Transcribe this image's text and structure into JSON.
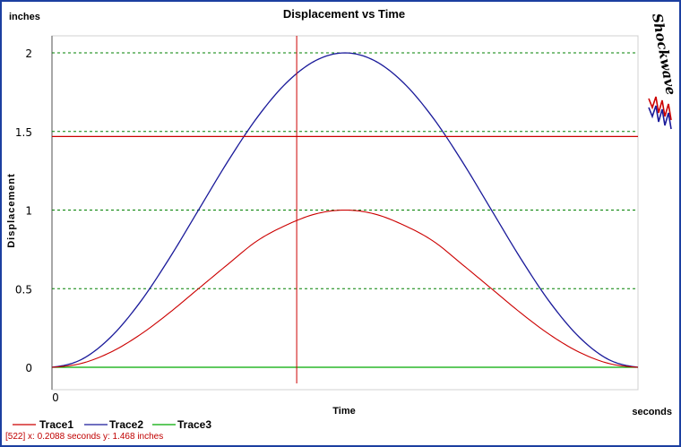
{
  "chart_data": {
    "type": "line",
    "title": "Displacement vs Time",
    "xlabel": "Time",
    "ylabel": "Displacement",
    "x_unit": "seconds",
    "y_unit": "inches",
    "x_tick_labels": [
      "0"
    ],
    "y_ticks": [
      0,
      0.5,
      1,
      1.5,
      2
    ],
    "y_tick_labels": [
      "0",
      "0.5",
      "1",
      "1.5",
      "2"
    ],
    "xlim": [
      0,
      0.5
    ],
    "ylim": [
      -0.05,
      2.1
    ],
    "grid": "horizontal-dashed",
    "legend_position": "bottom-left",
    "series": [
      {
        "name": "Trace1",
        "color": "#cc0000",
        "x": [
          0,
          0.025,
          0.05,
          0.075,
          0.1,
          0.125,
          0.15,
          0.175,
          0.2,
          0.225,
          0.25,
          0.275,
          0.3,
          0.325,
          0.35,
          0.375,
          0.4,
          0.425,
          0.45,
          0.475,
          0.5
        ],
        "y": [
          0,
          0.0245,
          0.0955,
          0.2061,
          0.3455,
          0.5,
          0.6545,
          0.8039,
          0.9045,
          0.9755,
          1.0,
          0.9755,
          0.9045,
          0.8039,
          0.6545,
          0.5,
          0.3455,
          0.2061,
          0.0955,
          0.0245,
          0
        ]
      },
      {
        "name": "Trace2",
        "color": "#1a1a9a",
        "x": [
          0,
          0.025,
          0.05,
          0.075,
          0.1,
          0.125,
          0.15,
          0.175,
          0.2,
          0.225,
          0.25,
          0.275,
          0.3,
          0.325,
          0.35,
          0.375,
          0.4,
          0.425,
          0.45,
          0.475,
          0.5
        ],
        "y": [
          0,
          0.049,
          0.191,
          0.412,
          0.691,
          1.0,
          1.309,
          1.588,
          1.809,
          1.951,
          2.0,
          1.951,
          1.809,
          1.588,
          1.309,
          1.0,
          0.691,
          0.412,
          0.191,
          0.049,
          0
        ]
      },
      {
        "name": "Trace3",
        "color": "#00aa00",
        "x": [
          0,
          0.5
        ],
        "y": [
          0,
          0
        ]
      }
    ],
    "cursor": {
      "x": 0.2088,
      "y": 1.468,
      "color": "#cc0000"
    }
  },
  "logo_text": "Shockwave",
  "status_text": "[522]  x: 0.2088 seconds  y: 1.468 inches"
}
